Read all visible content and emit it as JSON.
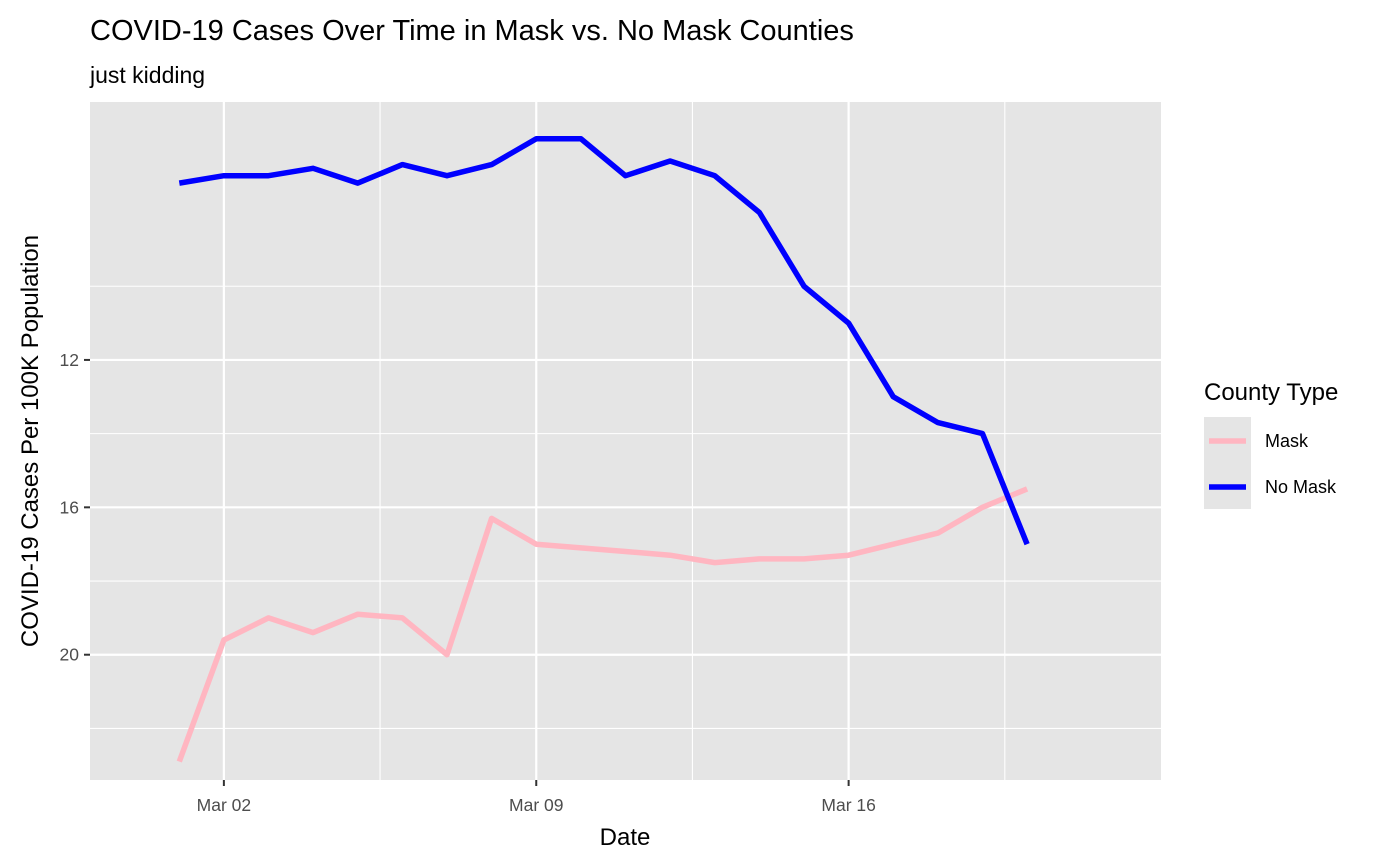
{
  "chart_data": {
    "type": "line",
    "title": "COVID-19 Cases Over Time in Mask vs. No Mask Counties",
    "subtitle": "just kidding",
    "xlabel": "Date",
    "ylabel": "COVID-19 Cases Per 100K Population",
    "y_reversed": true,
    "ylim": [
      5,
      23.4
    ],
    "xlim": [
      "2020-02-28",
      "2020-03-23"
    ],
    "x_ticks": [
      "Mar 02",
      "Mar 09",
      "Mar 16"
    ],
    "y_ticks": [
      "12",
      "16",
      "20"
    ],
    "grid": true,
    "legend_position": "right",
    "legend_title": "County Type",
    "x": [
      "2020-03-01",
      "2020-03-02",
      "2020-03-03",
      "2020-03-04",
      "2020-03-05",
      "2020-03-06",
      "2020-03-07",
      "2020-03-08",
      "2020-03-09",
      "2020-03-10",
      "2020-03-11",
      "2020-03-12",
      "2020-03-13",
      "2020-03-14",
      "2020-03-15",
      "2020-03-16",
      "2020-03-17",
      "2020-03-18",
      "2020-03-19",
      "2020-03-20"
    ],
    "series": [
      {
        "name": "Mask",
        "color": "#ffb6c1",
        "values": [
          22.9,
          19.6,
          19.0,
          19.4,
          18.9,
          19.0,
          20.0,
          16.3,
          17.0,
          17.1,
          17.2,
          17.3,
          17.5,
          17.4,
          17.4,
          17.3,
          17.0,
          16.7,
          16.0,
          15.5
        ]
      },
      {
        "name": "No Mask",
        "color": "#0000ff",
        "values": [
          7.2,
          7.0,
          7.0,
          6.8,
          7.2,
          6.7,
          7.0,
          6.7,
          6.0,
          6.0,
          7.0,
          6.6,
          7.0,
          8.0,
          10.0,
          11.0,
          13.0,
          13.7,
          14.0,
          17.0
        ]
      }
    ]
  }
}
